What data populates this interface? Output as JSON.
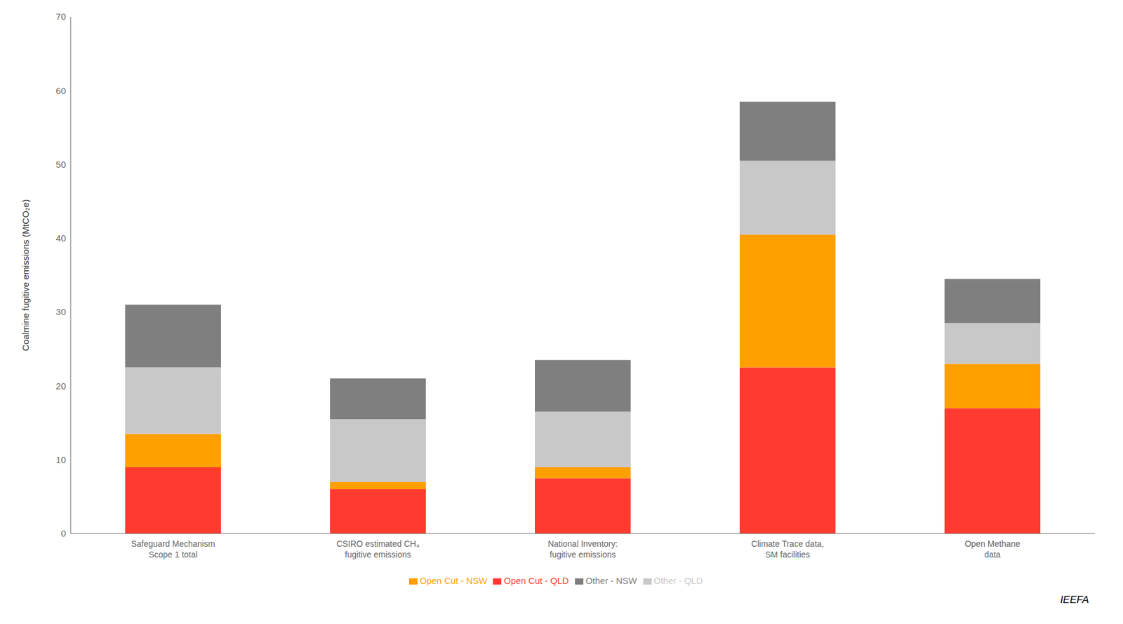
{
  "chart_data": {
    "type": "bar",
    "stacked": true,
    "categories": [
      "Safeguard Mechanism\nScope 1 total",
      "CSIRO estimated CH₄\nfugitive emissions",
      "National Inventory:\nfugitive emissions",
      "Climate Trace data,\nSM facilities",
      "Open Methane\ndata"
    ],
    "series": [
      {
        "name": "Open Cut - QLD",
        "color": "#FF3B30",
        "values": [
          9.0,
          6.0,
          7.5,
          22.5,
          17.0
        ]
      },
      {
        "name": "Open Cut - NSW",
        "color": "#FF9F00",
        "values": [
          4.5,
          1.0,
          1.5,
          18.0,
          6.0
        ]
      },
      {
        "name": "Other - QLD",
        "color": "#C8C8C8",
        "values": [
          9.0,
          8.5,
          7.5,
          10.0,
          5.5
        ]
      },
      {
        "name": "Other - NSW",
        "color": "#7F7F7F",
        "values": [
          8.5,
          5.5,
          7.0,
          8.0,
          6.0
        ]
      }
    ],
    "ylabel": "Coalmine fugitive emissions (MtCO₂e)",
    "ylim": [
      0,
      70
    ],
    "yticks": [
      0,
      10,
      20,
      30,
      40,
      50,
      60,
      70
    ],
    "grid": false,
    "legend": "bottom",
    "annotations": [
      "IEEFA"
    ]
  }
}
